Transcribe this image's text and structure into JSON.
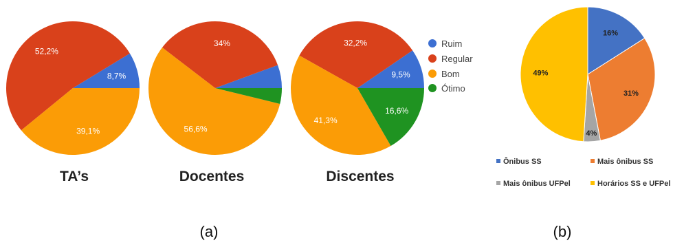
{
  "figure": {
    "caption_a": "(a)",
    "caption_b": "(b)"
  },
  "chart_data": [
    {
      "type": "pie",
      "title": "TA’s",
      "legend": [
        "Ruim",
        "Regular",
        "Bom",
        "Ótimo"
      ],
      "colors": [
        "#3c6fd2",
        "#d9411b",
        "#fb9c06",
        "#1f9321"
      ],
      "values": [
        8.7,
        52.2,
        39.1,
        0
      ],
      "labels": [
        "8,7%",
        "52,2%",
        "39,1%",
        ""
      ]
    },
    {
      "type": "pie",
      "title": "Docentes",
      "legend": [
        "Ruim",
        "Regular",
        "Bom",
        "Ótimo"
      ],
      "colors": [
        "#3c6fd2",
        "#d9411b",
        "#fb9c06",
        "#1f9321"
      ],
      "values": [
        5.6,
        34,
        56.6,
        3.8
      ],
      "labels": [
        "",
        "34%",
        "56,6%",
        ""
      ]
    },
    {
      "type": "pie",
      "title": "Discentes",
      "legend": [
        "Ruim",
        "Regular",
        "Bom",
        "Ótimo"
      ],
      "colors": [
        "#3c6fd2",
        "#d9411b",
        "#fb9c06",
        "#1f9321"
      ],
      "values": [
        9.5,
        32.2,
        41.3,
        16.6
      ],
      "labels": [
        "9,5%",
        "32,2%",
        "41,3%",
        "16,6%"
      ]
    },
    {
      "type": "pie",
      "title": "",
      "legend": [
        "Ônibus SS",
        "Mais ônibus SS",
        "Mais ônibus UFPel",
        "Horários SS e UFPel"
      ],
      "colors": [
        "#4472c4",
        "#ed7d31",
        "#a5a5a5",
        "#ffc000"
      ],
      "values": [
        16,
        31,
        4,
        49
      ],
      "labels": [
        "16%",
        "31%",
        "4%",
        "49%"
      ]
    }
  ]
}
